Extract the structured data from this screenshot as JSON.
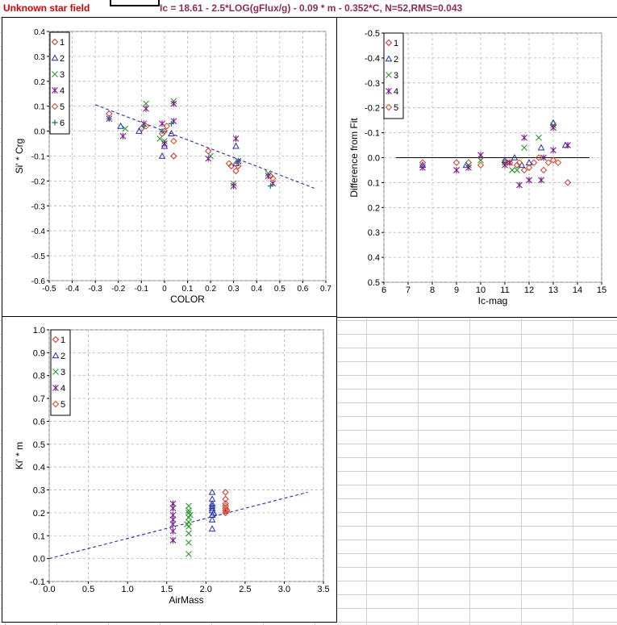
{
  "header": {
    "sheet_title": "Unknown star field",
    "fit_equation": "Ic = 18.61 - 2.5*LOG(gFlux/g) - 0.09 * m - 0.352*C, N=52,RMS=0.043"
  },
  "colors": {
    "series_1": "#d43030",
    "series_2": "#1f2fa8",
    "series_3": "#2a9a2a",
    "series_4": "#7a1a8a",
    "series_5": "#d04818",
    "series_6": "#1a7a7a",
    "fit_line": "#1f2fa8"
  },
  "chart_data": [
    {
      "id": "color-chart",
      "type": "scatter",
      "xlabel": "COLOR",
      "ylabel": "Si' * Crg",
      "xlim": [
        -0.5,
        0.7
      ],
      "ylim": [
        -0.6,
        0.4
      ],
      "xticks": [
        -0.5,
        -0.4,
        -0.3,
        -0.2,
        -0.1,
        0,
        0.1,
        0.2,
        0.3,
        0.4,
        0.5,
        0.6,
        0.7
      ],
      "yticks": [
        -0.6,
        -0.5,
        -0.4,
        -0.3,
        -0.2,
        -0.1,
        0,
        0.1,
        0.2,
        0.3,
        0.4
      ],
      "xtick_labels": [
        "-0.5",
        "-0.4",
        "-0.3",
        "-0.2",
        "-0.1",
        "0",
        "0.1",
        "0.2",
        "0.3",
        "0.4",
        "0.5",
        "0.6",
        "0.7"
      ],
      "ytick_labels": [
        "-0.6",
        "-0.5",
        "-0.4",
        "-0.3",
        "-0.2",
        "-0.1",
        "0.0",
        "0.1",
        "0.2",
        "0.3",
        "0.4"
      ],
      "y_inverted": false,
      "grid": true,
      "legend": "top-right",
      "fit_line": {
        "style": "dashed",
        "from": [
          -0.3,
          0.106
        ],
        "to": [
          0.65,
          -0.229
        ]
      },
      "series": [
        {
          "name": "1",
          "marker": "diamond",
          "points": [
            [
              -0.24,
              0.07
            ],
            [
              -0.1,
              0.01
            ],
            [
              -0.01,
              -0.01
            ],
            [
              0.0,
              0.0
            ],
            [
              0.04,
              -0.1
            ],
            [
              0.19,
              -0.08
            ],
            [
              0.29,
              -0.14
            ],
            [
              0.31,
              -0.16
            ],
            [
              0.46,
              -0.18
            ]
          ]
        },
        {
          "name": "2",
          "marker": "triangle",
          "points": [
            [
              -0.19,
              0.02
            ],
            [
              -0.11,
              0.0
            ],
            [
              -0.01,
              -0.1
            ],
            [
              0.0,
              -0.06
            ],
            [
              0.03,
              -0.01
            ],
            [
              0.31,
              -0.06
            ],
            [
              0.31,
              -0.13
            ]
          ]
        },
        {
          "name": "3",
          "marker": "x",
          "points": [
            [
              -0.17,
              0.01
            ],
            [
              -0.08,
              0.11
            ],
            [
              -0.02,
              -0.03
            ],
            [
              0.0,
              -0.04
            ],
            [
              0.04,
              0.12
            ],
            [
              0.2,
              -0.1
            ],
            [
              0.3,
              -0.21
            ],
            [
              0.45,
              -0.17
            ]
          ]
        },
        {
          "name": "4",
          "marker": "asterisk",
          "points": [
            [
              -0.24,
              0.05
            ],
            [
              -0.18,
              -0.02
            ],
            [
              -0.09,
              0.03
            ],
            [
              -0.08,
              0.09
            ],
            [
              -0.01,
              0.03
            ],
            [
              0.0,
              -0.05
            ],
            [
              0.04,
              0.04
            ],
            [
              0.04,
              0.11
            ],
            [
              0.19,
              -0.11
            ],
            [
              0.3,
              -0.22
            ],
            [
              0.31,
              -0.03
            ],
            [
              0.32,
              -0.12
            ],
            [
              0.45,
              -0.18
            ],
            [
              0.47,
              -0.21
            ]
          ]
        },
        {
          "name": "5",
          "marker": "diamond-open",
          "points": [
            [
              -0.08,
              0.02
            ],
            [
              0.01,
              0.02
            ],
            [
              0.04,
              -0.04
            ],
            [
              0.28,
              -0.13
            ],
            [
              0.32,
              -0.14
            ],
            [
              0.47,
              -0.19
            ]
          ]
        },
        {
          "name": "6",
          "marker": "plus",
          "points": [
            [
              -0.24,
              0.05
            ],
            [
              -0.09,
              0.02
            ],
            [
              -0.01,
              0.0
            ],
            [
              0.03,
              0.03
            ],
            [
              0.32,
              -0.12
            ],
            [
              0.46,
              -0.22
            ]
          ]
        }
      ]
    },
    {
      "id": "residual-chart",
      "type": "scatter",
      "xlabel": "Ic-mag",
      "ylabel": "Difference from Fit",
      "xlim": [
        6,
        15
      ],
      "ylim": [
        0.5,
        -0.5
      ],
      "xticks": [
        6,
        7,
        8,
        9,
        10,
        11,
        12,
        13,
        14,
        15
      ],
      "yticks": [
        -0.5,
        -0.4,
        -0.3,
        -0.2,
        -0.1,
        0,
        0.1,
        0.2,
        0.3,
        0.4,
        0.5
      ],
      "xtick_labels": [
        "6",
        "7",
        "8",
        "9",
        "10",
        "11",
        "12",
        "13",
        "14",
        "15"
      ],
      "ytick_labels": [
        "-0.5",
        "-0.4",
        "-0.3",
        "-0.2",
        "-0.1",
        "0.0",
        "0.1",
        "0.2",
        "0.3",
        "0.4",
        "0.5"
      ],
      "y_inverted": true,
      "grid": true,
      "legend": "top-right",
      "fit_line": {
        "style": "solid",
        "from": [
          6.5,
          0.0
        ],
        "to": [
          14.5,
          0.0
        ]
      },
      "series": [
        {
          "name": "1",
          "marker": "diamond",
          "points": [
            [
              7.6,
              0.02
            ],
            [
              9.0,
              0.02
            ],
            [
              9.5,
              0.02
            ],
            [
              10.0,
              0.0
            ],
            [
              11.0,
              0.02
            ],
            [
              11.5,
              0.03
            ],
            [
              11.8,
              0.05
            ],
            [
              12.2,
              0.02
            ],
            [
              12.6,
              0.05
            ],
            [
              13.0,
              0.01
            ],
            [
              13.6,
              0.1
            ]
          ]
        },
        {
          "name": "2",
          "marker": "triangle",
          "points": [
            [
              7.6,
              0.03
            ],
            [
              9.4,
              0.03
            ],
            [
              11.0,
              0.01
            ],
            [
              11.4,
              0.0
            ],
            [
              11.7,
              0.03
            ],
            [
              12.0,
              0.02
            ],
            [
              12.5,
              -0.04
            ],
            [
              13.0,
              -0.14
            ],
            [
              13.5,
              -0.05
            ]
          ]
        },
        {
          "name": "3",
          "marker": "x",
          "points": [
            [
              9.5,
              0.03
            ],
            [
              10.0,
              0.01
            ],
            [
              11.0,
              0.02
            ],
            [
              11.3,
              0.05
            ],
            [
              11.5,
              0.05
            ],
            [
              11.8,
              -0.04
            ],
            [
              12.4,
              -0.08
            ],
            [
              13.0,
              -0.13
            ]
          ]
        },
        {
          "name": "4",
          "marker": "asterisk",
          "points": [
            [
              7.6,
              0.04
            ],
            [
              9.0,
              0.05
            ],
            [
              9.5,
              0.04
            ],
            [
              10.0,
              -0.01
            ],
            [
              11.0,
              0.03
            ],
            [
              11.2,
              0.02
            ],
            [
              11.6,
              0.11
            ],
            [
              11.8,
              -0.08
            ],
            [
              12.0,
              0.09
            ],
            [
              12.5,
              0.09
            ],
            [
              12.6,
              0.0
            ],
            [
              13.0,
              -0.03
            ],
            [
              13.0,
              -0.12
            ],
            [
              13.6,
              -0.05
            ]
          ]
        },
        {
          "name": "5",
          "marker": "diamond-open",
          "points": [
            [
              10.0,
              0.03
            ],
            [
              11.2,
              0.02
            ],
            [
              11.6,
              0.02
            ],
            [
              12.0,
              0.04
            ],
            [
              12.4,
              0.0
            ],
            [
              12.8,
              0.02
            ],
            [
              13.2,
              0.02
            ]
          ]
        }
      ]
    },
    {
      "id": "airmass-chart",
      "type": "scatter",
      "xlabel": "AirMass",
      "ylabel": "Ki' * m",
      "xlim": [
        0,
        3.5
      ],
      "ylim": [
        -0.1,
        1.0
      ],
      "xticks": [
        0,
        0.5,
        1.0,
        1.5,
        2.0,
        2.5,
        3.0,
        3.5
      ],
      "yticks": [
        -0.1,
        0,
        0.1,
        0.2,
        0.3,
        0.4,
        0.5,
        0.6,
        0.7,
        0.8,
        0.9,
        1.0
      ],
      "xtick_labels": [
        "0.0",
        "0.5",
        "1.0",
        "1.5",
        "2.0",
        "2.5",
        "3.0",
        "3.5"
      ],
      "ytick_labels": [
        "-0.1",
        "0.0",
        "0.1",
        "0.2",
        "0.3",
        "0.4",
        "0.5",
        "0.6",
        "0.7",
        "0.8",
        "0.9",
        "1.0"
      ],
      "y_inverted": false,
      "grid": true,
      "legend": "top-right",
      "fit_line": {
        "style": "dashed",
        "from": [
          0.0,
          0.0
        ],
        "to": [
          3.3,
          0.29
        ]
      },
      "series": [
        {
          "name": "1",
          "marker": "diamond",
          "points": [
            [
              2.25,
              0.2
            ],
            [
              2.25,
              0.22
            ],
            [
              2.25,
              0.24
            ],
            [
              2.25,
              0.26
            ],
            [
              2.25,
              0.29
            ],
            [
              2.27,
              0.21
            ]
          ]
        },
        {
          "name": "2",
          "marker": "triangle",
          "points": [
            [
              2.08,
              0.13
            ],
            [
              2.08,
              0.17
            ],
            [
              2.08,
              0.19
            ],
            [
              2.08,
              0.21
            ],
            [
              2.08,
              0.22
            ],
            [
              2.08,
              0.23
            ],
            [
              2.08,
              0.24
            ],
            [
              2.08,
              0.26
            ],
            [
              2.08,
              0.29
            ],
            [
              2.1,
              0.2
            ]
          ]
        },
        {
          "name": "3",
          "marker": "x",
          "points": [
            [
              1.78,
              0.02
            ],
            [
              1.78,
              0.07
            ],
            [
              1.78,
              0.11
            ],
            [
              1.78,
              0.14
            ],
            [
              1.78,
              0.16
            ],
            [
              1.78,
              0.18
            ],
            [
              1.78,
              0.2
            ],
            [
              1.78,
              0.21
            ],
            [
              1.78,
              0.23
            ],
            [
              1.76,
              0.15
            ],
            [
              1.8,
              0.19
            ]
          ]
        },
        {
          "name": "4",
          "marker": "asterisk",
          "points": [
            [
              1.58,
              0.08
            ],
            [
              1.58,
              0.12
            ],
            [
              1.58,
              0.15
            ],
            [
              1.58,
              0.17
            ],
            [
              1.58,
              0.19
            ],
            [
              1.58,
              0.22
            ],
            [
              1.58,
              0.24
            ]
          ]
        },
        {
          "name": "5",
          "marker": "diamond-open",
          "points": [
            [
              2.25,
              0.21
            ],
            [
              2.25,
              0.23
            ]
          ]
        }
      ]
    }
  ]
}
